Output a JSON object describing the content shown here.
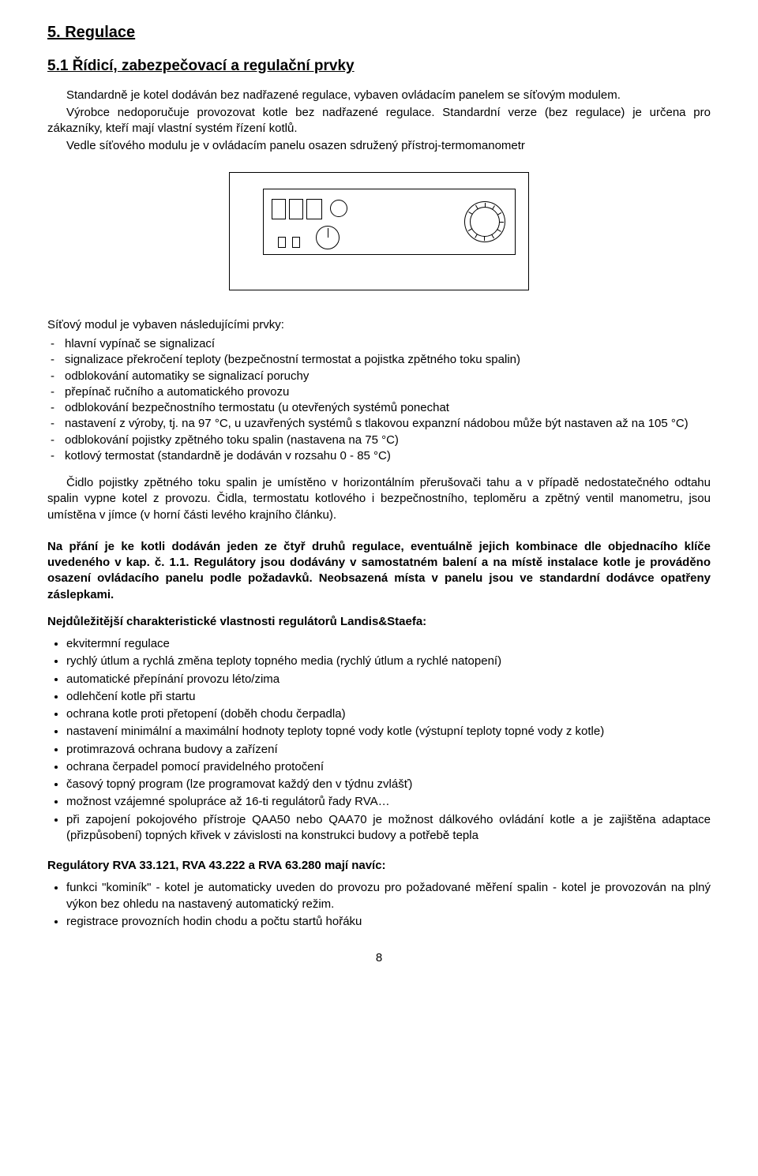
{
  "h1": "5.  Regulace",
  "h2": "5.1  Řídicí, zabezpečovací a regulační prvky",
  "p1": "Standardně je kotel dodáván bez nadřazené regulace, vybaven ovládacím panelem se síťovým modulem.",
  "p2": "Výrobce nedoporučuje provozovat kotle bez nadřazené regulace. Standardní verze (bez regulace) je určena pro zákazníky, kteří mají vlastní systém řízení kotlů.",
  "p3": "Vedle síťového modulu je v ovládacím panelu osazen sdružený přístroj-termomanometr",
  "list1_intro": "Síťový modul je vybaven následujícími prvky:",
  "list1": [
    "hlavní vypínač se signalizací",
    "signalizace překročení teploty (bezpečnostní termostat a pojistka zpětného toku spalin)",
    "odblokování automatiky se signalizací poruchy",
    "přepínač ručního a automatického provozu",
    "odblokování bezpečnostního termostatu (u otevřených systémů ponechat",
    "nastavení z výroby, tj. na 97 °C, u uzavřených systémů s tlakovou expanzní nádobou může být nastaven až na 105 °C)",
    "odblokování pojistky zpětného toku spalin (nastavena na 75 °C)",
    "kotlový termostat (standardně je dodáván v rozsahu 0 - 85 °C)"
  ],
  "p4": "Čidlo pojistky zpětného toku spalin je umístěno v horizontálním přerušovači tahu a v případě nedostatečného odtahu spalin vypne kotel z provozu. Čidla, termostatu kotlového i bezpečnostního, teploměru a zpětný ventil manometru, jsou umístěna v jímce (v horní části levého krajního článku).",
  "bold1": "Na přání je ke kotli dodáván jeden ze čtyř druhů regulace, eventuálně jejich kombinace dle objednacího klíče uvedeného v kap. č. 1.1. Regulátory jsou dodávány v samostatném balení a na místě instalace kotle je prováděno osazení ovládacího panelu podle požadavků. Neobsazená místa v panelu jsou ve standardní dodávce opatřeny záslepkami.",
  "subhead1": "Nejdůležitější charakteristické vlastnosti regulátorů Landis&Staefa:",
  "blist1": [
    "ekvitermní regulace",
    "rychlý útlum a rychlá změna teploty topného media (rychlý útlum a rychlé natopení)",
    "automatické přepínání provozu léto/zima",
    "odlehčení kotle při startu",
    "ochrana kotle proti přetopení (doběh chodu čerpadla)",
    "nastavení minimální a maximální hodnoty teploty topné vody kotle (výstupní teploty topné vody z kotle)",
    "protimrazová ochrana budovy a zařízení",
    "ochrana čerpadel pomocí pravidelného protočení",
    "časový topný program (lze programovat každý den v týdnu zvlášť)",
    "možnost vzájemné spolupráce až 16-ti regulátorů řady RVA…",
    "při zapojení pokojového přístroje QAA50 nebo QAA70 je možnost dálkového ovládání kotle a je zajištěna adaptace (přizpůsobení) topných křivek v závislosti na konstrukci budovy a potřebě tepla"
  ],
  "subhead2": "Regulátory RVA 33.121, RVA 43.222 a RVA 63.280 mají navíc:",
  "blist2": [
    "funkci \"kominík\" - kotel je automaticky uveden do provozu pro požadované měření spalin - kotel je provozován na plný výkon bez ohledu na nastavený automatický režim.",
    "registrace provozních hodin chodu a počtu startů hořáku"
  ],
  "pagenum": "8",
  "panel": {
    "gauge_ticks": [
      -60,
      -30,
      0,
      30,
      60,
      90,
      120,
      150,
      180,
      210,
      240
    ]
  }
}
